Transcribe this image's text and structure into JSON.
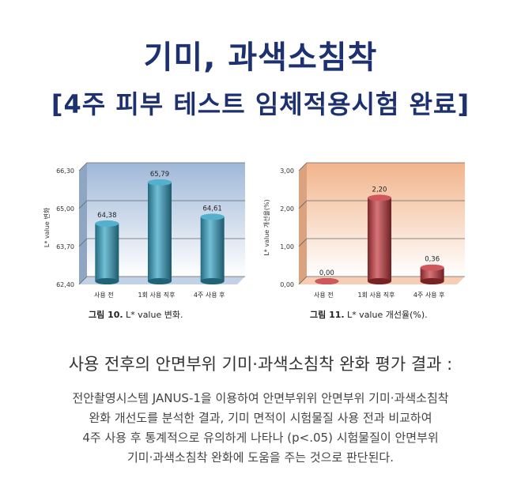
{
  "header": {
    "title": "기미, 과색소침착",
    "subtitle": "[4주 피부 테스트 임체적용시험 완료]"
  },
  "chart_data": [
    {
      "type": "bar",
      "ylabel": "L* value 변화",
      "ylim": [
        62.4,
        66.3
      ],
      "yticks": [
        "62,40",
        "63,70",
        "65,00",
        "66,30"
      ],
      "categories": [
        "사용 전",
        "1회 사용 직후",
        "4주 사용 후"
      ],
      "values": [
        64.38,
        65.79,
        64.61
      ],
      "value_labels": [
        "64,38",
        "65,79",
        "64,61"
      ],
      "bar_color": "#36a3c4",
      "background": "#9fb8d8",
      "caption_prefix": "그림 10.",
      "caption_text": " L* value 변화."
    },
    {
      "type": "bar",
      "ylabel": "L* value 개선율(%)",
      "ylim": [
        0,
        3
      ],
      "yticks": [
        "0,00",
        "1,00",
        "2,00",
        "3,00"
      ],
      "categories": [
        "사용 전",
        "1회 사용 직후",
        "4주 사용 후"
      ],
      "values": [
        0.0,
        2.2,
        0.36
      ],
      "value_labels": [
        "0,00",
        "2,20",
        "0,36"
      ],
      "bar_color": "#c63a3f",
      "background": "#f2b48c",
      "caption_prefix": "그림 11.",
      "caption_text": " L* value 개선율(%)."
    }
  ],
  "summary": {
    "heading": "사용 전후의 안면부위 기미·과색소침착 완화 평가 결과 :",
    "lines": [
      "전안촬영시스템 JANUS-1을 이용하여 안면부위위 안면부위 기미·과색소침착",
      "완화 개선도를 분석한 결과, 기미 면적이 시험물질 사용 전과 비교하여",
      "4주 사용 후 통계적으로 유의하게 나타나 (p<.05) 시험물질이 안면부위",
      "기미·과색소침착 완화에 도움을 주는 것으로 판단된다."
    ]
  }
}
